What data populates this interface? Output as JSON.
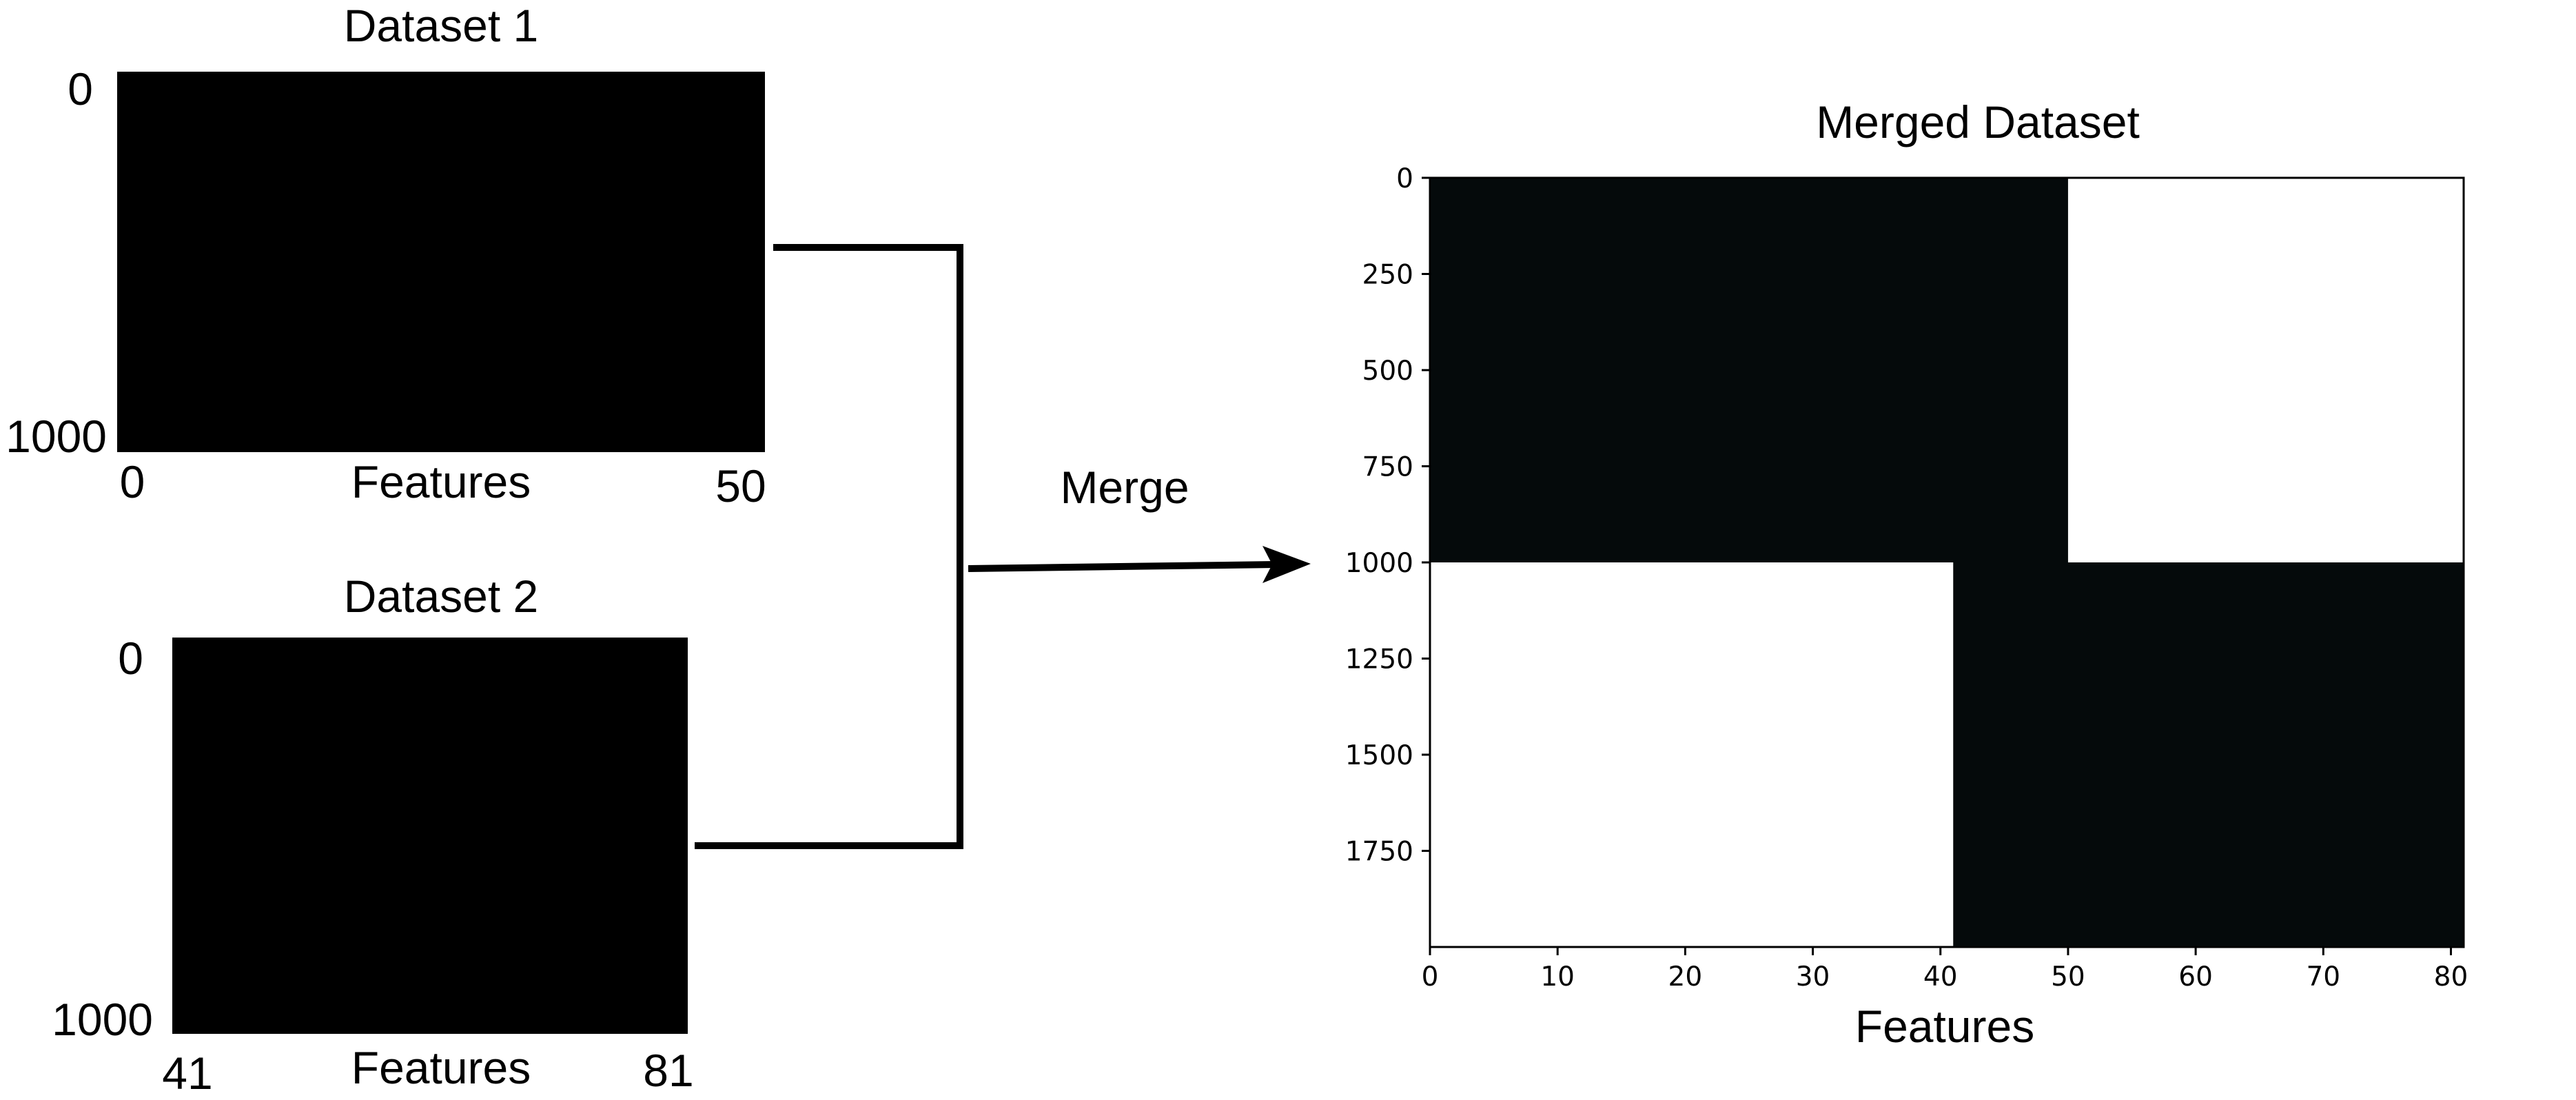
{
  "dataset1": {
    "title": "Dataset 1",
    "row_start": "0",
    "row_end": "1000",
    "col_start": "0",
    "col_end": "50",
    "xlabel": "Features"
  },
  "dataset2": {
    "title": "Dataset 2",
    "row_start": "0",
    "row_end": "1000",
    "col_start": "41",
    "col_end": "81",
    "xlabel": "Features"
  },
  "merge_label": "Merge",
  "merged": {
    "title": "Merged Dataset",
    "xlabel": "Features",
    "x_ticks": [
      "0",
      "10",
      "20",
      "30",
      "40",
      "50",
      "60",
      "70",
      "80"
    ],
    "y_ticks": [
      "0",
      "250",
      "500",
      "750",
      "1000",
      "1250",
      "1500",
      "1750"
    ],
    "xlim": [
      0,
      81
    ],
    "ylim": [
      0,
      2000
    ],
    "blocks": [
      {
        "name": "dataset-1-block",
        "x": [
          0,
          50
        ],
        "y": [
          0,
          1000
        ],
        "color": "#050a0b"
      },
      {
        "name": "dataset-2-block",
        "x": [
          41,
          81
        ],
        "y": [
          1000,
          2000
        ],
        "color": "#050a0b"
      }
    ]
  },
  "colors": {
    "fill": "#000000",
    "merged_fill": "#050a0b",
    "background": "#ffffff"
  }
}
